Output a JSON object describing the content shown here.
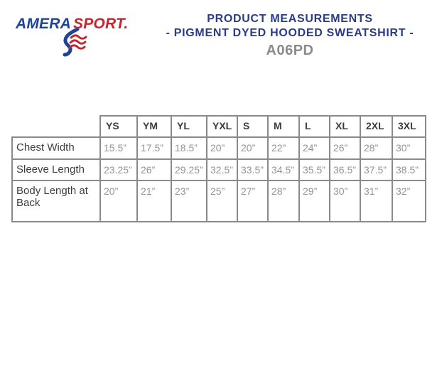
{
  "logo": {
    "part1": "AMERA",
    "part2": "SPORT.",
    "blue": "#1c449b",
    "red": "#c4252e"
  },
  "header": {
    "title_line1": "PRODUCT MEASUREMENTS",
    "title_line2": "- PIGMENT DYED HOODED SWEATSHIRT -",
    "product_code": "A06PD",
    "title_color": "#2a3b87",
    "code_color": "#8b8b8b"
  },
  "table": {
    "corner_label": "",
    "sizes": [
      "YS",
      "YM",
      "YL",
      "YXL",
      "S",
      "M",
      "L",
      "XL",
      "2XL",
      "3XL"
    ],
    "rows": [
      {
        "label": "Chest Width",
        "values": [
          "15.5”",
          "17.5”",
          "18.5”",
          "20”",
          "20”",
          "22”",
          "24”",
          "26”",
          "28”",
          "30”"
        ]
      },
      {
        "label": "Sleeve Length",
        "values": [
          "23.25”",
          "26”",
          "29.25”",
          "32.5”",
          "33.5”",
          "34.5”",
          "35.5”",
          "36.5”",
          "37.5”",
          "38.5”"
        ]
      },
      {
        "label": "Body Length at Back",
        "values": [
          "20”",
          "21”",
          "23”",
          "25”",
          "27”",
          "28”",
          "29”",
          "30”",
          "31”",
          "32”"
        ]
      }
    ],
    "border_color": "#8a8a8a",
    "value_color": "#949494",
    "label_color": "#3d3d3d"
  }
}
